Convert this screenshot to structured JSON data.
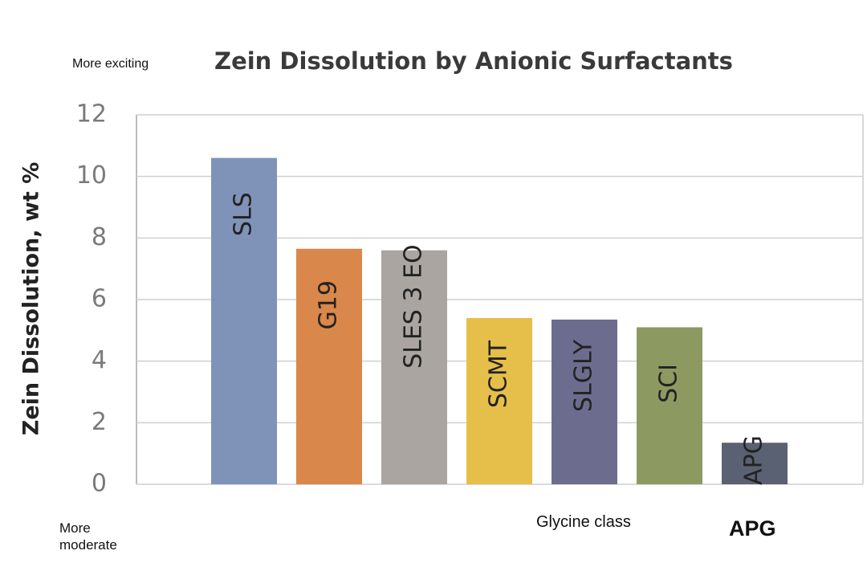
{
  "chart_data": {
    "type": "bar",
    "title": "Zein Dissolution by Anionic Surfactants",
    "y_label": "Zein Dissolution, wt %",
    "categories": [
      "SLS",
      "G19",
      "SLES 3 EO",
      "SCMT",
      "SLGLY",
      "SCI",
      "APG"
    ],
    "values": [
      10.6,
      7.65,
      7.6,
      5.4,
      5.35,
      5.1,
      1.35
    ],
    "colors": [
      "#7f93b8",
      "#d9874a",
      "#aaa5a0",
      "#e6bf4a",
      "#6c6d8e",
      "#8c9a62",
      "#5a6172"
    ],
    "ylim": [
      0,
      12
    ],
    "yticks": [
      0,
      2,
      4,
      6,
      8,
      10,
      12
    ],
    "grid": true,
    "annotations": {
      "top_left": "More exciting",
      "bottom_left": "More moderate",
      "glycine": "Glycine class",
      "apg": "APG"
    }
  }
}
